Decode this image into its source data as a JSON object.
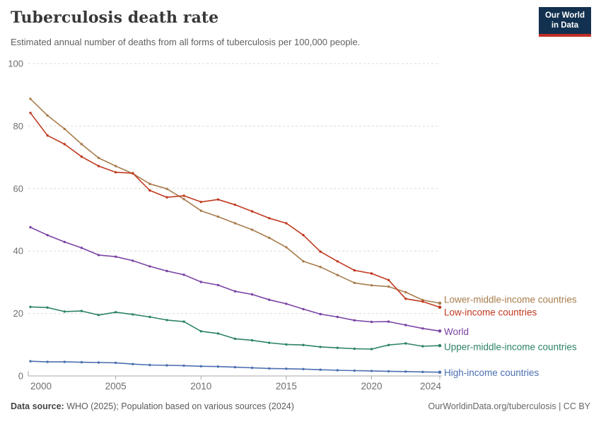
{
  "header": {
    "title": "Tuberculosis death rate",
    "subtitle": "Estimated annual number of deaths from all forms of tuberculosis per 100,000 people.",
    "logo": {
      "line1": "Our World",
      "line2": "in Data",
      "bg_color": "#12304F",
      "accent_color": "#C22E27"
    }
  },
  "chart_data": {
    "type": "line",
    "title": "Tuberculosis death rate",
    "xlabel": "",
    "ylabel": "",
    "xlim": [
      2000,
      2024
    ],
    "ylim": [
      0,
      100
    ],
    "x_ticks": [
      2000,
      2005,
      2010,
      2015,
      2020,
      2024
    ],
    "y_ticks": [
      0,
      20,
      40,
      60,
      80,
      100
    ],
    "grid": "dashed horizontal gridlines",
    "legend_position": "right of line ends, colored text labels",
    "x": [
      2000,
      2001,
      2002,
      2003,
      2004,
      2005,
      2006,
      2007,
      2008,
      2009,
      2010,
      2011,
      2012,
      2013,
      2014,
      2015,
      2016,
      2017,
      2018,
      2019,
      2020,
      2021,
      2022,
      2023,
      2024
    ],
    "series": [
      {
        "name": "Lower-middle-income countries",
        "color": "#A87C4C",
        "values": [
          88.7,
          83.4,
          79.1,
          74.2,
          69.8,
          67.2,
          64.8,
          61.5,
          59.9,
          56.6,
          52.9,
          51.0,
          48.9,
          46.8,
          44.2,
          41.2,
          36.7,
          34.9,
          32.3,
          29.8,
          29.0,
          28.6,
          26.8,
          24.3,
          23.3
        ]
      },
      {
        "name": "Low-income countries",
        "color": "#C0391F",
        "values": [
          84.2,
          77.0,
          74.2,
          70.2,
          67.2,
          65.2,
          64.9,
          59.4,
          57.2,
          57.7,
          55.7,
          56.5,
          54.8,
          52.7,
          50.5,
          48.9,
          45.1,
          39.8,
          36.7,
          33.8,
          32.8,
          30.7,
          24.7,
          23.8,
          22.0
        ]
      },
      {
        "name": "World",
        "color": "#7A43A5",
        "values": [
          47.6,
          45.1,
          42.9,
          41.0,
          38.7,
          38.2,
          36.9,
          35.1,
          33.6,
          32.4,
          30.1,
          29.1,
          27.1,
          26.1,
          24.4,
          23.1,
          21.4,
          19.8,
          18.9,
          17.8,
          17.3,
          17.4,
          16.3,
          15.2,
          14.4
        ]
      },
      {
        "name": "Upper-middle-income countries",
        "color": "#2D8465",
        "values": [
          22.1,
          21.9,
          20.6,
          20.8,
          19.5,
          20.4,
          19.7,
          18.9,
          17.9,
          17.4,
          14.3,
          13.6,
          11.9,
          11.4,
          10.6,
          10.1,
          9.9,
          9.3,
          9.0,
          8.7,
          8.6,
          9.9,
          10.4,
          9.5,
          9.7
        ]
      },
      {
        "name": "High-income countries",
        "color": "#4C6FB1",
        "values": [
          4.7,
          4.5,
          4.5,
          4.4,
          4.3,
          4.2,
          3.8,
          3.5,
          3.4,
          3.3,
          3.1,
          3.0,
          2.8,
          2.6,
          2.4,
          2.3,
          2.2,
          2.0,
          1.8,
          1.7,
          1.6,
          1.5,
          1.4,
          1.3,
          1.2
        ]
      }
    ]
  },
  "footer": {
    "source_label": "Data source:",
    "source_text": " WHO (2025); Population based on various sources (2024)",
    "link_text": "OurWorldinData.org/tuberculosis | CC BY"
  }
}
